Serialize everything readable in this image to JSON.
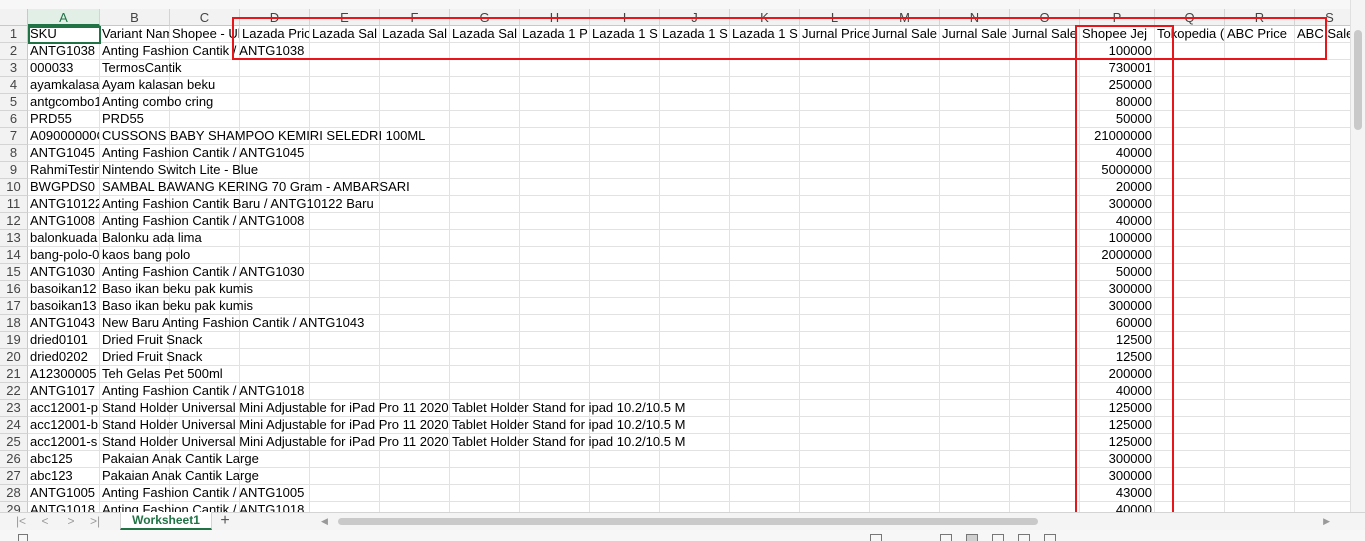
{
  "spreadsheet": {
    "column_letters": [
      "A",
      "B",
      "C",
      "D",
      "E",
      "F",
      "G",
      "H",
      "I",
      "J",
      "K",
      "L",
      "M",
      "N",
      "O",
      "P",
      "Q",
      "R",
      "S"
    ],
    "header_row": [
      "SKU",
      "Variant Nam",
      "Shopee - Ul",
      "Lazada Pric",
      "Lazada Sal",
      "Lazada Sal",
      "Lazada Sal",
      "Lazada 1 P",
      "Lazada 1 S",
      "Lazada 1 S",
      "Lazada 1 S",
      "Jurnal Price",
      "Jurnal Sale",
      "Jurnal Sale",
      "Jurnal Sale",
      "Shopee Jej",
      "Tokopedia (",
      "ABC Price",
      "ABC Sale"
    ],
    "rows": [
      {
        "num": "2",
        "sku": "ANTG1038",
        "name": "Anting Fashion Cantik / ANTG1038",
        "price": "100000"
      },
      {
        "num": "3",
        "sku": "000033",
        "name": "TermosCantik",
        "price": "730001"
      },
      {
        "num": "4",
        "sku": "ayamkalasa",
        "name": "Ayam kalasan beku",
        "price": "250000"
      },
      {
        "num": "5",
        "sku": "antgcombo1",
        "name": "Anting combo cring",
        "price": "80000"
      },
      {
        "num": "6",
        "sku": "PRD55",
        "name": "PRD55",
        "price": "50000"
      },
      {
        "num": "7",
        "sku": "A09000000C",
        "name": "CUSSONS BABY SHAMPOO KEMIRI SELEDRI 100ML",
        "price": "21000000"
      },
      {
        "num": "8",
        "sku": "ANTG1045",
        "name": "Anting Fashion Cantik / ANTG1045",
        "price": "40000"
      },
      {
        "num": "9",
        "sku": "RahmiTestin",
        "name": "Nintendo Switch Lite - Blue",
        "price": "5000000"
      },
      {
        "num": "10",
        "sku": "BWGPDS0",
        "name": "SAMBAL BAWANG KERING 70 Gram - AMBARSARI",
        "price": "20000"
      },
      {
        "num": "11",
        "sku": "ANTG10122",
        "name": "Anting Fashion Cantik Baru / ANTG10122 Baru",
        "price": "300000"
      },
      {
        "num": "12",
        "sku": "ANTG1008",
        "name": "Anting Fashion Cantik / ANTG1008",
        "price": "40000"
      },
      {
        "num": "13",
        "sku": "balonkuada",
        "name": "Balonku ada lima",
        "price": "100000"
      },
      {
        "num": "14",
        "sku": "bang-polo-0",
        "name": "kaos bang polo",
        "price": "2000000"
      },
      {
        "num": "15",
        "sku": "ANTG1030",
        "name": "Anting Fashion Cantik / ANTG1030",
        "price": "50000"
      },
      {
        "num": "16",
        "sku": "basoikan12",
        "name": "Baso ikan beku pak kumis",
        "price": "300000"
      },
      {
        "num": "17",
        "sku": "basoikan13",
        "name": "Baso ikan beku pak kumis",
        "price": "300000"
      },
      {
        "num": "18",
        "sku": "ANTG1043",
        "name": "New Baru Anting Fashion Cantik / ANTG1043",
        "price": "60000"
      },
      {
        "num": "19",
        "sku": "dried0101",
        "name": "Dried Fruit Snack",
        "price": "12500"
      },
      {
        "num": "20",
        "sku": "dried0202",
        "name": "Dried Fruit Snack",
        "price": "12500"
      },
      {
        "num": "21",
        "sku": "A12300005",
        "name": "Teh Gelas Pet 500ml",
        "price": "200000"
      },
      {
        "num": "22",
        "sku": "ANTG1017",
        "name": "Anting Fashion Cantik / ANTG1018",
        "price": "40000"
      },
      {
        "num": "23",
        "sku": "acc12001-p",
        "name": "Stand Holder Universal Mini Adjustable for iPad Pro 11 2020 Tablet Holder Stand for ipad 10.2/10.5 M",
        "price": "125000"
      },
      {
        "num": "24",
        "sku": "acc12001-b",
        "name": "Stand Holder Universal Mini Adjustable for iPad Pro 11 2020 Tablet Holder Stand for ipad 10.2/10.5 M",
        "price": "125000"
      },
      {
        "num": "25",
        "sku": "acc12001-s",
        "name": "Stand Holder Universal Mini Adjustable for iPad Pro 11 2020 Tablet Holder Stand for ipad 10.2/10.5 M",
        "price": "125000"
      },
      {
        "num": "26",
        "sku": "abc125",
        "name": "Pakaian Anak Cantik Large",
        "price": "300000"
      },
      {
        "num": "27",
        "sku": "abc123",
        "name": "Pakaian Anak Cantik Large",
        "price": "300000"
      },
      {
        "num": "28",
        "sku": "ANTG1005",
        "name": "Anting Fashion Cantik / ANTG1005",
        "price": "43000"
      },
      {
        "num": "29",
        "sku": "ANTG1018",
        "name": "Anting Fashion Cantik / ANTG1018",
        "price": "40000"
      }
    ]
  },
  "sheet_tabs": {
    "active": "Worksheet1",
    "add_symbol": "+"
  },
  "nav": {
    "first": "|<",
    "prev": "<",
    "next": ">",
    "last": ">|"
  },
  "colors": {
    "accent": "#217346",
    "highlight": "#e8161b"
  }
}
